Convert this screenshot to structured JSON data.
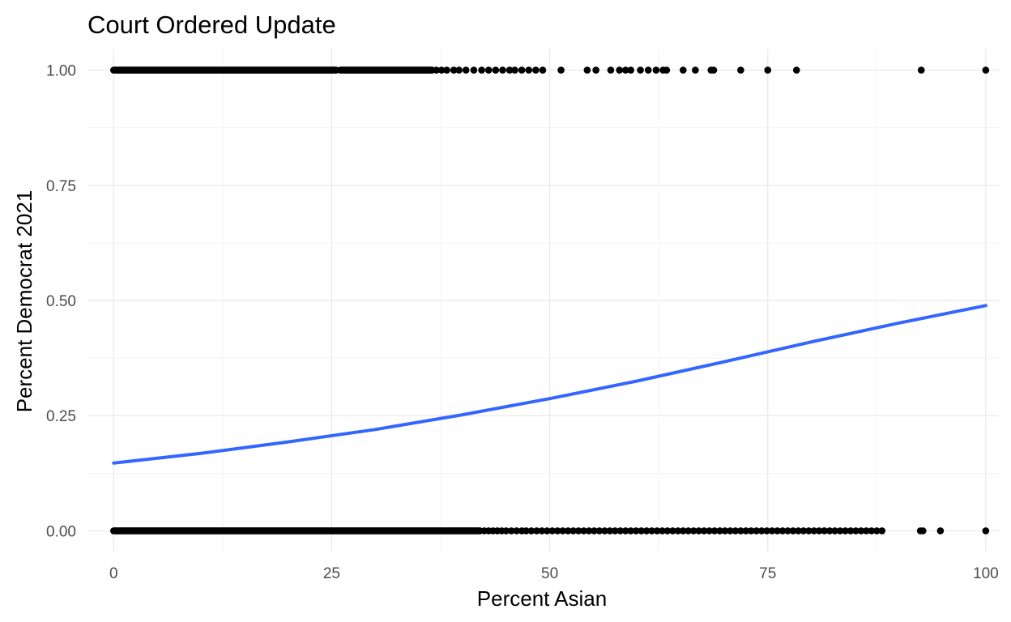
{
  "chart_data": {
    "type": "scatter",
    "title": "Court Ordered Update",
    "xlabel": "Percent Asian",
    "ylabel": "Percent Democrat 2021",
    "xlim": [
      -3,
      101.5
    ],
    "ylim": [
      -0.045,
      1.045
    ],
    "x_ticks": [
      0,
      25,
      50,
      75,
      100
    ],
    "x_tick_labels": [
      "0",
      "25",
      "50",
      "75",
      "100"
    ],
    "y_ticks": [
      0,
      0.25,
      0.5,
      0.75,
      1
    ],
    "y_tick_labels": [
      "0.00",
      "0.25",
      "0.50",
      "0.75",
      "1.00"
    ],
    "x_minor_ticks": [
      12.5,
      37.5,
      62.5,
      87.5
    ],
    "y_minor_ticks": [
      0.125,
      0.375,
      0.625,
      0.875
    ],
    "grid": true,
    "legend": "none",
    "colors": {
      "points": "#000000",
      "trend": "#3366ff"
    },
    "series": [
      {
        "type": "scatter",
        "dense_ranges": [
          {
            "y": 1,
            "x_range": [
              0,
              25.5
            ]
          },
          {
            "y": 1,
            "x_range": [
              26,
              36.5
            ]
          },
          {
            "y": 0,
            "x_range": [
              0,
              42
            ]
          }
        ],
        "points": [
          {
            "x": 37,
            "y": 1
          },
          {
            "x": 37.6,
            "y": 1
          },
          {
            "x": 38.2,
            "y": 1
          },
          {
            "x": 39,
            "y": 1
          },
          {
            "x": 39.6,
            "y": 1
          },
          {
            "x": 40.4,
            "y": 1
          },
          {
            "x": 41.3,
            "y": 1
          },
          {
            "x": 42.2,
            "y": 1
          },
          {
            "x": 43,
            "y": 1
          },
          {
            "x": 43.8,
            "y": 1
          },
          {
            "x": 44.6,
            "y": 1
          },
          {
            "x": 45.4,
            "y": 1
          },
          {
            "x": 46,
            "y": 1
          },
          {
            "x": 46.8,
            "y": 1
          },
          {
            "x": 47.6,
            "y": 1
          },
          {
            "x": 48.4,
            "y": 1
          },
          {
            "x": 49.2,
            "y": 1
          },
          {
            "x": 51.3,
            "y": 1
          },
          {
            "x": 54.3,
            "y": 1
          },
          {
            "x": 55.3,
            "y": 1
          },
          {
            "x": 57,
            "y": 1
          },
          {
            "x": 58,
            "y": 1
          },
          {
            "x": 58.7,
            "y": 1
          },
          {
            "x": 59.3,
            "y": 1
          },
          {
            "x": 60.4,
            "y": 1
          },
          {
            "x": 61.3,
            "y": 1
          },
          {
            "x": 62.2,
            "y": 1
          },
          {
            "x": 63,
            "y": 1
          },
          {
            "x": 63.4,
            "y": 1
          },
          {
            "x": 65.3,
            "y": 1
          },
          {
            "x": 66.7,
            "y": 1
          },
          {
            "x": 68.5,
            "y": 1
          },
          {
            "x": 68.8,
            "y": 1
          },
          {
            "x": 71.9,
            "y": 1
          },
          {
            "x": 75,
            "y": 1
          },
          {
            "x": 78.3,
            "y": 1
          },
          {
            "x": 92.6,
            "y": 1
          },
          {
            "x": 100,
            "y": 1
          },
          {
            "x": 42.5,
            "y": 0
          },
          {
            "x": 43,
            "y": 0
          },
          {
            "x": 43.5,
            "y": 0
          },
          {
            "x": 44,
            "y": 0
          },
          {
            "x": 44.5,
            "y": 0
          },
          {
            "x": 45,
            "y": 0
          },
          {
            "x": 45.6,
            "y": 0
          },
          {
            "x": 46.2,
            "y": 0
          },
          {
            "x": 46.8,
            "y": 0
          },
          {
            "x": 47.3,
            "y": 0
          },
          {
            "x": 47.9,
            "y": 0
          },
          {
            "x": 48.5,
            "y": 0
          },
          {
            "x": 49.1,
            "y": 0
          },
          {
            "x": 49.7,
            "y": 0
          },
          {
            "x": 50.3,
            "y": 0
          },
          {
            "x": 50.9,
            "y": 0
          },
          {
            "x": 51.5,
            "y": 0
          },
          {
            "x": 52.1,
            "y": 0
          },
          {
            "x": 52.7,
            "y": 0
          },
          {
            "x": 53.3,
            "y": 0
          },
          {
            "x": 53.9,
            "y": 0
          },
          {
            "x": 54.5,
            "y": 0
          },
          {
            "x": 55.1,
            "y": 0
          },
          {
            "x": 55.7,
            "y": 0
          },
          {
            "x": 56.3,
            "y": 0
          },
          {
            "x": 56.9,
            "y": 0
          },
          {
            "x": 57.5,
            "y": 0
          },
          {
            "x": 58.1,
            "y": 0
          },
          {
            "x": 58.7,
            "y": 0
          },
          {
            "x": 59.3,
            "y": 0
          },
          {
            "x": 59.9,
            "y": 0
          },
          {
            "x": 60.5,
            "y": 0
          },
          {
            "x": 61.1,
            "y": 0
          },
          {
            "x": 61.7,
            "y": 0
          },
          {
            "x": 62.3,
            "y": 0
          },
          {
            "x": 62.9,
            "y": 0
          },
          {
            "x": 63.5,
            "y": 0
          },
          {
            "x": 64.1,
            "y": 0
          },
          {
            "x": 64.7,
            "y": 0
          },
          {
            "x": 65.3,
            "y": 0
          },
          {
            "x": 65.9,
            "y": 0
          },
          {
            "x": 66.5,
            "y": 0
          },
          {
            "x": 67.1,
            "y": 0
          },
          {
            "x": 67.7,
            "y": 0
          },
          {
            "x": 68.3,
            "y": 0
          },
          {
            "x": 68.9,
            "y": 0
          },
          {
            "x": 69.5,
            "y": 0
          },
          {
            "x": 70.1,
            "y": 0
          },
          {
            "x": 70.7,
            "y": 0
          },
          {
            "x": 71.3,
            "y": 0
          },
          {
            "x": 71.9,
            "y": 0
          },
          {
            "x": 72.5,
            "y": 0
          },
          {
            "x": 73.1,
            "y": 0
          },
          {
            "x": 73.7,
            "y": 0
          },
          {
            "x": 74.3,
            "y": 0
          },
          {
            "x": 74.9,
            "y": 0
          },
          {
            "x": 75.5,
            "y": 0
          },
          {
            "x": 76.1,
            "y": 0
          },
          {
            "x": 76.7,
            "y": 0
          },
          {
            "x": 77.3,
            "y": 0
          },
          {
            "x": 77.9,
            "y": 0
          },
          {
            "x": 78.5,
            "y": 0
          },
          {
            "x": 79.1,
            "y": 0
          },
          {
            "x": 79.7,
            "y": 0
          },
          {
            "x": 80.3,
            "y": 0
          },
          {
            "x": 80.9,
            "y": 0
          },
          {
            "x": 81.5,
            "y": 0
          },
          {
            "x": 82.1,
            "y": 0
          },
          {
            "x": 82.7,
            "y": 0
          },
          {
            "x": 83.3,
            "y": 0
          },
          {
            "x": 83.9,
            "y": 0
          },
          {
            "x": 84.5,
            "y": 0
          },
          {
            "x": 85.1,
            "y": 0
          },
          {
            "x": 85.7,
            "y": 0
          },
          {
            "x": 86.3,
            "y": 0
          },
          {
            "x": 86.9,
            "y": 0
          },
          {
            "x": 87.5,
            "y": 0
          },
          {
            "x": 88.1,
            "y": 0
          },
          {
            "x": 92.5,
            "y": 0
          },
          {
            "x": 92.8,
            "y": 0
          },
          {
            "x": 94.8,
            "y": 0
          },
          {
            "x": 100,
            "y": 0
          }
        ]
      },
      {
        "type": "line",
        "x": [
          0,
          10,
          20,
          30,
          40,
          50,
          60,
          70,
          80,
          90,
          100
        ],
        "values": [
          0.147,
          0.168,
          0.193,
          0.22,
          0.252,
          0.287,
          0.325,
          0.367,
          0.41,
          0.451,
          0.489
        ]
      }
    ]
  }
}
